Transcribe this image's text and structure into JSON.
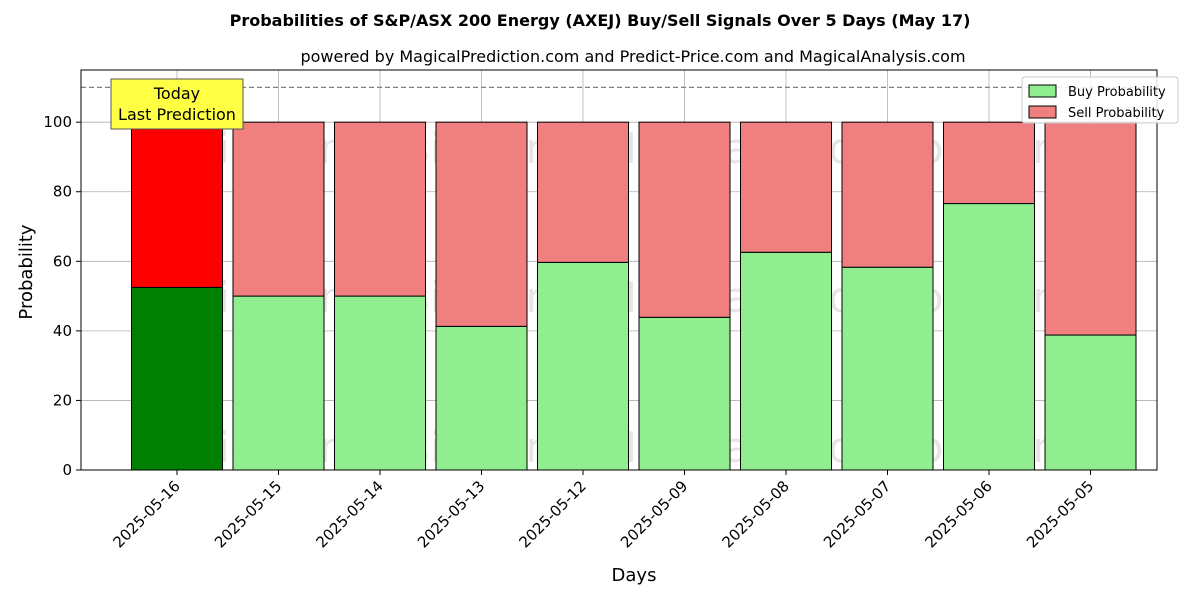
{
  "chart_data": {
    "type": "bar",
    "stacked": true,
    "title": "Probabilities of S&P/ASX 200 Energy (AXEJ) Buy/Sell Signals Over 5 Days (May 17)",
    "subtitle": "powered by MagicalPrediction.com and Predict-Price.com and MagicalAnalysis.com",
    "xlabel": "Days",
    "ylabel": "Probability",
    "ylim": [
      0,
      115
    ],
    "yticks": [
      0,
      20,
      40,
      60,
      80,
      100
    ],
    "grid": true,
    "legend_position": "top-right",
    "categories": [
      "2025-05-16",
      "2025-05-15",
      "2025-05-14",
      "2025-05-13",
      "2025-05-12",
      "2025-05-09",
      "2025-05-08",
      "2025-05-07",
      "2025-05-06",
      "2025-05-05"
    ],
    "series": [
      {
        "name": "Buy Probability",
        "values": [
          52.5,
          50.0,
          50.0,
          41.3,
          59.7,
          43.9,
          62.6,
          58.3,
          76.6,
          38.8
        ],
        "color": "#90ee90",
        "highlight_color": "#008000"
      },
      {
        "name": "Sell Probability",
        "values": [
          47.5,
          50.0,
          50.0,
          58.7,
          40.3,
          56.1,
          37.4,
          41.7,
          23.4,
          61.2
        ],
        "color": "#f08080",
        "highlight_color": "#ff0000"
      }
    ],
    "highlight_index": 0,
    "reference_line": {
      "y": 110,
      "style": "dashed",
      "color": "#808080"
    },
    "annotation": {
      "lines": [
        "Today",
        "Last Prediction"
      ],
      "color": "#ffff44",
      "category_index": 0
    },
    "watermarks": [
      "MagicalAnalysis.com",
      "MagicalPrediction.com"
    ]
  }
}
